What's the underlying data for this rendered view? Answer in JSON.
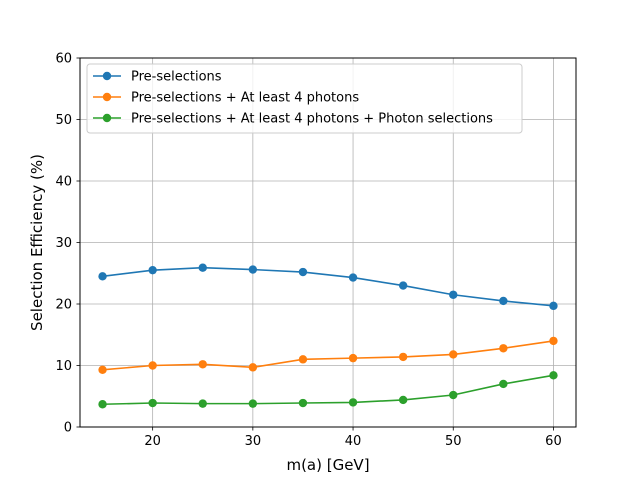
{
  "chart_data": {
    "type": "line",
    "xlabel": "m(a) [GeV]",
    "ylabel": "Selection Efficiency (%)",
    "xlim": [
      12.75,
      62.25
    ],
    "ylim": [
      0,
      60
    ],
    "x_ticks": [
      20,
      30,
      40,
      50,
      60
    ],
    "y_ticks": [
      0,
      10,
      20,
      30,
      40,
      50,
      60
    ],
    "x_tick_labels": [
      "20",
      "30",
      "40",
      "50",
      "60"
    ],
    "y_tick_labels": [
      "0",
      "10",
      "20",
      "30",
      "40",
      "50",
      "60"
    ],
    "grid": true,
    "legend_position": "top-left",
    "x": [
      15,
      20,
      25,
      30,
      35,
      40,
      45,
      50,
      55,
      60
    ],
    "series": [
      {
        "name": "Pre-selections",
        "color": "#1f77b4",
        "values": [
          24.5,
          25.5,
          25.9,
          25.6,
          25.2,
          24.3,
          23.0,
          21.5,
          20.5,
          19.7
        ]
      },
      {
        "name": "Pre-selections + At least 4 photons",
        "color": "#ff7f0e",
        "values": [
          9.3,
          10.0,
          10.2,
          9.7,
          11.0,
          11.2,
          11.4,
          11.8,
          12.8,
          14.0
        ]
      },
      {
        "name": "Pre-selections + At least 4 photons + Photon selections",
        "color": "#2ca02c",
        "values": [
          3.7,
          3.9,
          3.8,
          3.8,
          3.9,
          4.0,
          4.4,
          5.2,
          7.0,
          8.4
        ]
      }
    ]
  }
}
